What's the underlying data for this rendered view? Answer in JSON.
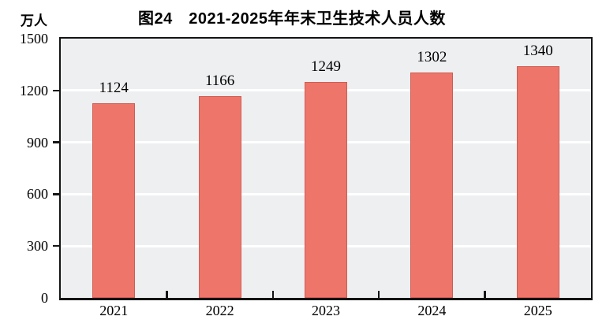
{
  "chart_data": {
    "type": "bar",
    "title": "图24　2021-2025年年末卫生技术人员人数",
    "unit_label": "万人",
    "categories": [
      "2021",
      "2022",
      "2023",
      "2024",
      "2025"
    ],
    "values": [
      1124,
      1166,
      1249,
      1302,
      1340
    ],
    "ylim": [
      0,
      1500
    ],
    "yticks": [
      0,
      300,
      600,
      900,
      1200,
      1500
    ],
    "xlabel": "",
    "ylabel": "万人",
    "grid": "horizontal",
    "legend": "none",
    "value_labels": "above bars",
    "colors": {
      "bar_fill": "#ed756a",
      "bar_border": "#d25b52",
      "plot_background": "#edeff1",
      "gridline": "#ffffff",
      "axis": "#141414",
      "text": "#000000",
      "page_background": "#ffffff"
    }
  }
}
